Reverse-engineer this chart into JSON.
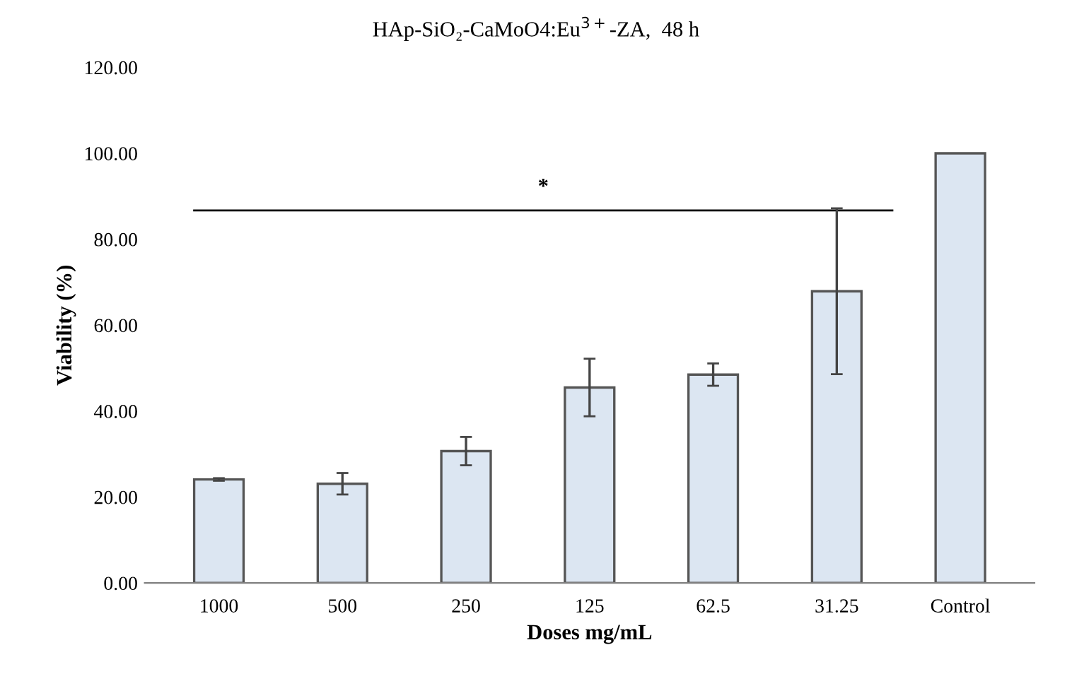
{
  "chart_data": {
    "type": "bar",
    "title": "HAp-SiO₂-CaMoO4:Eu$^{3+}$-ZA,  48 h",
    "xlabel": "Doses mg/mL",
    "ylabel": "Viability (%)",
    "categories": [
      "1000",
      "500",
      "250",
      "125",
      "62.5",
      "31.25",
      "Control"
    ],
    "values": [
      24.1,
      23.1,
      30.7,
      45.5,
      48.5,
      67.9,
      100
    ],
    "errors": [
      0.3,
      2.5,
      3.3,
      6.7,
      2.6,
      19.3,
      null
    ],
    "color": "#dce6f2",
    "ylim": [
      0,
      120
    ],
    "yticks": [
      {
        "value": 0,
        "label": "0.00"
      },
      {
        "value": 20,
        "label": "20.00"
      },
      {
        "value": 40,
        "label": "40.00"
      },
      {
        "value": 60,
        "label": "60.00"
      },
      {
        "value": 80,
        "label": "80.00"
      },
      {
        "value": 100,
        "label": "100.00"
      },
      {
        "value": 120,
        "label": "120.00"
      }
    ],
    "ref_lines": [
      {
        "axis": "y",
        "value": 86.7,
        "label": "*",
        "color": "#000000"
      }
    ],
    "grid": false,
    "legend": false
  }
}
